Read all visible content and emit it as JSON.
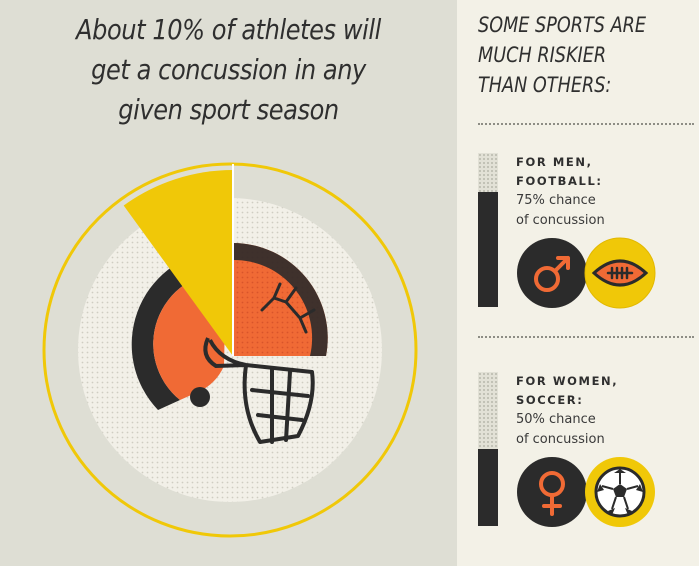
{
  "headline": {
    "line1": "About 10% of athletes will",
    "line2": "get a concussion in any",
    "line3": "given sport season"
  },
  "chart_data": {
    "type": "pie",
    "categories": [
      "concussion"
    ],
    "values": [
      10
    ]
  },
  "side": {
    "title_line1": "SOME SPORTS ARE",
    "title_line2": "MUCH RISKIER",
    "title_line3": "THAN OTHERS:"
  },
  "panels": [
    {
      "label_line1": "FOR MEN,",
      "label_line2": "FOOTBALL:",
      "stat_line1": "75% chance",
      "stat_line2": "of concussion",
      "percent": 75,
      "gender_icon": "male-symbol-icon",
      "sport_icon": "football-icon"
    },
    {
      "label_line1": "FOR WOMEN,",
      "label_line2": "SOCCER:",
      "stat_line1": "50% chance",
      "stat_line2": "of concussion",
      "percent": 50,
      "gender_icon": "female-symbol-icon",
      "sport_icon": "soccer-ball-icon"
    }
  ],
  "colors": {
    "background_left": "#deded4",
    "background_right": "#f3f1e7",
    "yellow": "#f0c808",
    "orange": "#f06a35",
    "dark": "#2b2b2b",
    "dotted_light": "#f2f0e8"
  }
}
